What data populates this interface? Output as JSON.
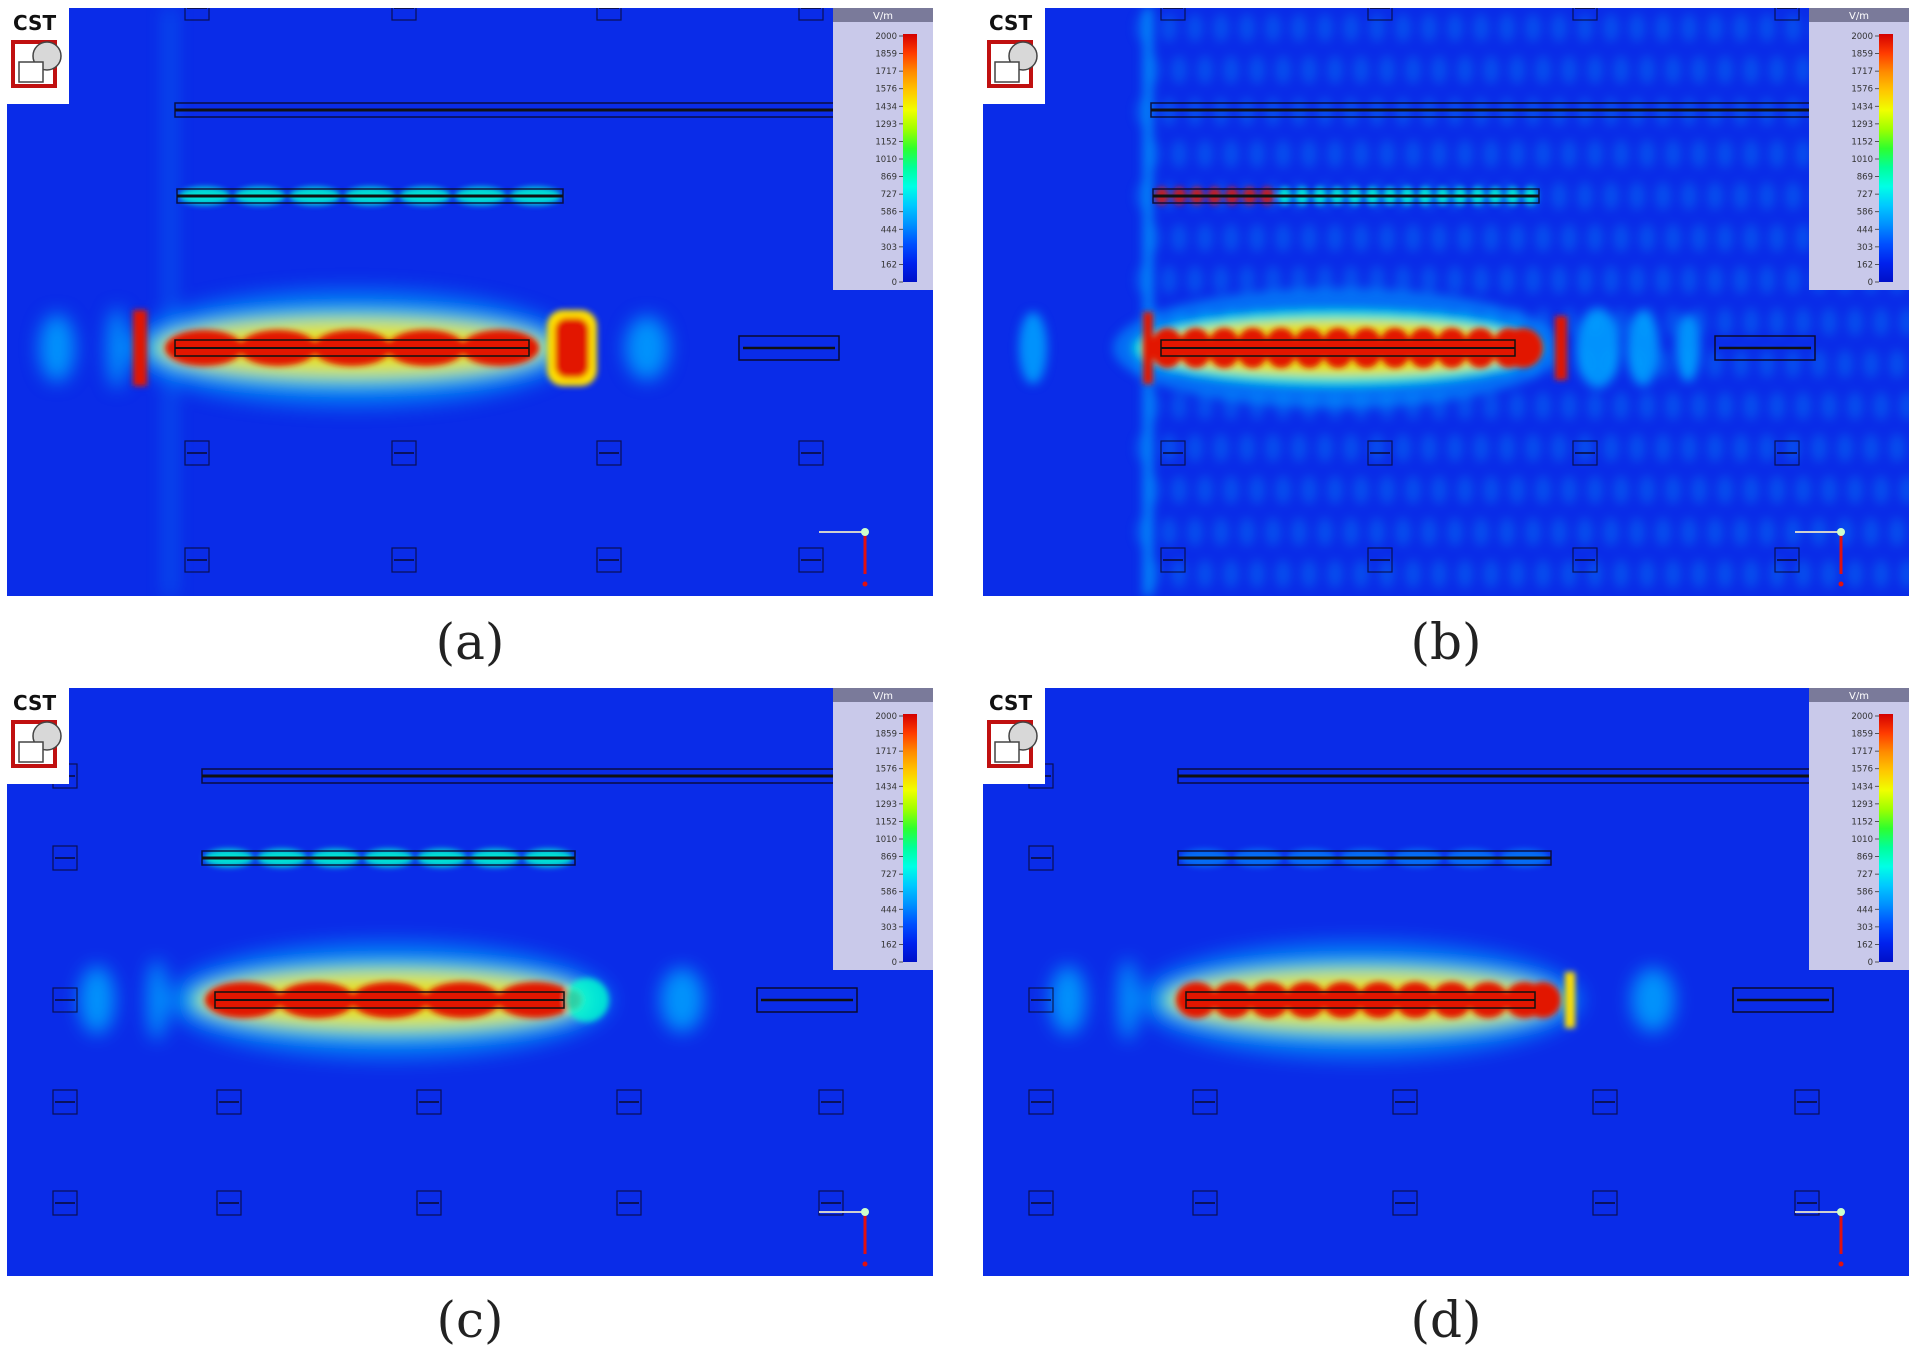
{
  "figure": {
    "panels": [
      {
        "id": "a",
        "caption": "(a)",
        "pattern": "low-freq"
      },
      {
        "id": "b",
        "caption": "(b)",
        "pattern": "high-freq"
      },
      {
        "id": "c",
        "caption": "(c)",
        "pattern": "low-freq-variant"
      },
      {
        "id": "d",
        "caption": "(d)",
        "pattern": "mid-freq"
      }
    ],
    "software_logo": "CST",
    "colorbar": {
      "unit": "V/m",
      "ticks": [
        "2000",
        "1859",
        "1717",
        "1576",
        "1434",
        "1293",
        "1152",
        "1010",
        "869",
        "727",
        "586",
        "444",
        "303",
        "162",
        "0"
      ],
      "colors": [
        "#d40000",
        "#ff3b00",
        "#ff8c00",
        "#ffc800",
        "#f0ff00",
        "#9eff00",
        "#2eff2e",
        "#00ff9a",
        "#00ffe6",
        "#00c8ff",
        "#0090ff",
        "#0050ff",
        "#0022ee",
        "#0010c8"
      ]
    },
    "field_colors": {
      "background": "#0a2ce8",
      "weak": "#00a4ff",
      "medium": "#00ffd0",
      "strong": "#ffe000",
      "max": "#e21400"
    }
  }
}
